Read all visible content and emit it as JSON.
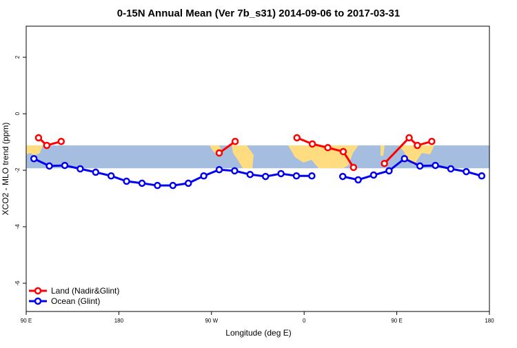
{
  "chart_data": {
    "type": "line",
    "title": "0-15N Annual Mean (Ver 7b_s31)   2014-09-06 to 2017-03-31",
    "x_label": "Longitude (deg E)",
    "y_label": "XCO2 - MLO trend (ppm)",
    "xlim": [
      90,
      540
    ],
    "ylim": [
      -7,
      3.1
    ],
    "xticks": [
      {
        "value": 90,
        "label": "90 E"
      },
      180,
      {
        "value": 270,
        "label": "90 W"
      },
      {
        "value": 360,
        "label": "0"
      },
      {
        "value": 450,
        "label": "90 E"
      },
      {
        "value": 540,
        "label": "180"
      }
    ],
    "yticks": [
      -6,
      -4,
      -2,
      0,
      2
    ],
    "band": {
      "range": [
        -1.93,
        -1.12
      ],
      "color": "#a5bddf"
    },
    "legend": "bottom-left",
    "series": [
      {
        "name": "Land (Nadir&Glint)",
        "color": "#ff0000",
        "x": [
          102,
          110,
          124,
          200,
          277.5,
          293,
          330,
          353,
          368,
          383,
          398,
          408,
          420,
          438,
          462,
          470,
          484
        ],
        "values": [
          -0.85,
          -1.12,
          -0.98,
          null,
          -1.39,
          -0.98,
          null,
          -0.85,
          -1.07,
          -1.2,
          -1.34,
          -1.9,
          null,
          -1.76,
          -0.85,
          -1.12,
          -0.98
        ]
      },
      {
        "name": "Ocean (Glint)",
        "color": "#0000ee",
        "x": [
          97.5,
          112.5,
          127.5,
          142.5,
          157.5,
          172.5,
          187.5,
          202.5,
          217.5,
          232.5,
          247.5,
          262.5,
          277.5,
          292.5,
          307.5,
          322.5,
          337.5,
          352.5,
          367.5,
          382.5,
          397.5,
          412.5,
          427.5,
          442.5,
          457.5,
          472.5,
          487.5,
          502.5,
          517.5,
          532.5
        ],
        "values": [
          -1.59,
          -1.85,
          -1.83,
          -1.95,
          -2.07,
          -2.2,
          -2.39,
          -2.46,
          -2.54,
          -2.54,
          -2.46,
          -2.2,
          -1.98,
          -2.02,
          -2.15,
          -2.22,
          -2.12,
          -2.2,
          -2.2,
          null,
          -2.22,
          -2.34,
          -2.17,
          -2.02,
          -1.59,
          -1.85,
          -1.83,
          -1.95,
          -2.05,
          -2.2
        ]
      }
    ]
  }
}
